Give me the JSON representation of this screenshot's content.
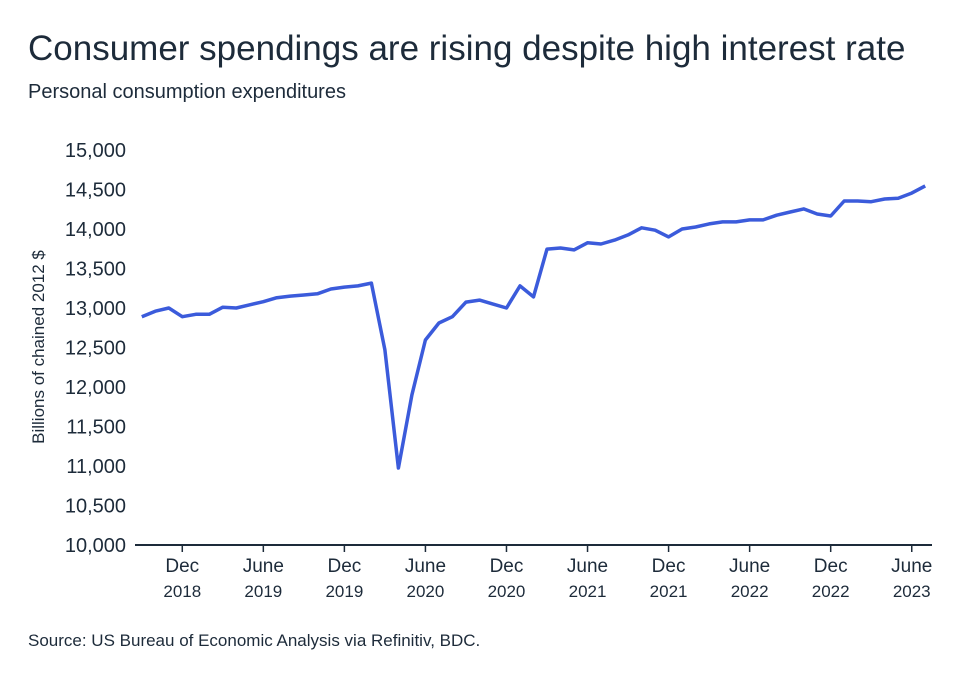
{
  "chart_data": {
    "type": "line",
    "title": "Consumer spendings are rising despite high interest rate",
    "subtitle": "Personal consumption expenditures",
    "y_label": "Billions of chained 2012 $",
    "source": "Source: US Bureau of Economic Analysis via Refinitiv, BDC.",
    "x": [
      "2018-09",
      "2018-10",
      "2018-11",
      "2018-12",
      "2019-01",
      "2019-02",
      "2019-03",
      "2019-04",
      "2019-05",
      "2019-06",
      "2019-07",
      "2019-08",
      "2019-09",
      "2019-10",
      "2019-11",
      "2019-12",
      "2020-01",
      "2020-02",
      "2020-03",
      "2020-04",
      "2020-05",
      "2020-06",
      "2020-07",
      "2020-08",
      "2020-09",
      "2020-10",
      "2020-11",
      "2020-12",
      "2021-01",
      "2021-02",
      "2021-03",
      "2021-04",
      "2021-05",
      "2021-06",
      "2021-07",
      "2021-08",
      "2021-09",
      "2021-10",
      "2021-11",
      "2021-12",
      "2022-01",
      "2022-02",
      "2022-03",
      "2022-04",
      "2022-05",
      "2022-06",
      "2022-07",
      "2022-08",
      "2022-09",
      "2022-10",
      "2022-11",
      "2022-12",
      "2023-01",
      "2023-02",
      "2023-03",
      "2023-04",
      "2023-05",
      "2023-06",
      "2023-07"
    ],
    "series": [
      {
        "name": "Personal consumption expenditures",
        "color": "#3b5bdb",
        "values": [
          12890,
          12960,
          13000,
          12890,
          12920,
          12920,
          13010,
          13000,
          13040,
          13080,
          13130,
          13150,
          13165,
          13180,
          13240,
          13265,
          13280,
          13315,
          12470,
          10975,
          11900,
          12595,
          12810,
          12890,
          13075,
          13100,
          13050,
          13000,
          13280,
          13140,
          13745,
          13760,
          13735,
          13825,
          13810,
          13860,
          13925,
          14015,
          13985,
          13900,
          14000,
          14025,
          14065,
          14090,
          14090,
          14115,
          14115,
          14175,
          14215,
          14255,
          14190,
          14165,
          14355,
          14355,
          14345,
          14380,
          14390,
          14455,
          14545
        ]
      }
    ],
    "ylim": [
      10000,
      15000
    ],
    "yticks": [
      {
        "value": 10000,
        "label": "10,000"
      },
      {
        "value": 10500,
        "label": "10,500"
      },
      {
        "value": 11000,
        "label": "11,000"
      },
      {
        "value": 11500,
        "label": "11,500"
      },
      {
        "value": 12000,
        "label": "12,000"
      },
      {
        "value": 12500,
        "label": "12,500"
      },
      {
        "value": 13000,
        "label": "13,000"
      },
      {
        "value": 13500,
        "label": "13,500"
      },
      {
        "value": 14000,
        "label": "14,000"
      },
      {
        "value": 14500,
        "label": "14,500"
      },
      {
        "value": 15000,
        "label": "15,000"
      }
    ],
    "xticks": [
      {
        "value": "2018-12",
        "label": "Dec 2018"
      },
      {
        "value": "2019-06",
        "label": "June 2019"
      },
      {
        "value": "2019-12",
        "label": "Dec 2019"
      },
      {
        "value": "2020-06",
        "label": "June 2020"
      },
      {
        "value": "2020-12",
        "label": "Dec 2020"
      },
      {
        "value": "2021-06",
        "label": "June 2021"
      },
      {
        "value": "2021-12",
        "label": "Dec 2021"
      },
      {
        "value": "2022-06",
        "label": "June 2022"
      },
      {
        "value": "2022-12",
        "label": "Dec 2022"
      },
      {
        "value": "2023-06",
        "label": "June 2023"
      }
    ],
    "grid": false
  }
}
